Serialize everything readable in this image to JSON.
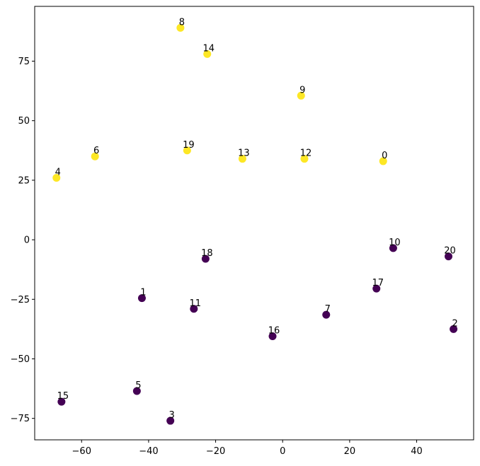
{
  "chart_data": {
    "type": "scatter",
    "title": "",
    "xlabel": "",
    "ylabel": "",
    "xlim": [
      -74,
      57
    ],
    "ylim": [
      -84,
      98
    ],
    "x_ticks": [
      -60,
      -40,
      -20,
      0,
      20,
      40
    ],
    "y_ticks": [
      -75,
      -50,
      -25,
      0,
      25,
      50,
      75
    ],
    "grid": false,
    "colors": {
      "yellow": "#fde725",
      "purple": "#440154"
    },
    "points": [
      {
        "label": "0",
        "x": 30.0,
        "y": 33.0,
        "color": "yellow"
      },
      {
        "label": "1",
        "x": -42.0,
        "y": -24.5,
        "color": "purple"
      },
      {
        "label": "2",
        "x": 51.0,
        "y": -37.5,
        "color": "purple"
      },
      {
        "label": "3",
        "x": -33.5,
        "y": -76.0,
        "color": "purple"
      },
      {
        "label": "4",
        "x": -67.5,
        "y": 26.0,
        "color": "yellow"
      },
      {
        "label": "5",
        "x": -43.5,
        "y": -63.5,
        "color": "purple"
      },
      {
        "label": "6",
        "x": -56.0,
        "y": 35.0,
        "color": "yellow"
      },
      {
        "label": "7",
        "x": 13.0,
        "y": -31.5,
        "color": "purple"
      },
      {
        "label": "8",
        "x": -30.5,
        "y": 89.0,
        "color": "yellow"
      },
      {
        "label": "9",
        "x": 5.5,
        "y": 60.5,
        "color": "yellow"
      },
      {
        "label": "10",
        "x": 33.0,
        "y": -3.5,
        "color": "purple"
      },
      {
        "label": "11",
        "x": -26.5,
        "y": -29.0,
        "color": "purple"
      },
      {
        "label": "12",
        "x": 6.5,
        "y": 34.0,
        "color": "yellow"
      },
      {
        "label": "13",
        "x": -12.0,
        "y": 34.0,
        "color": "yellow"
      },
      {
        "label": "14",
        "x": -22.5,
        "y": 78.0,
        "color": "yellow"
      },
      {
        "label": "15",
        "x": -66.0,
        "y": -68.0,
        "color": "purple"
      },
      {
        "label": "16",
        "x": -3.0,
        "y": -40.5,
        "color": "purple"
      },
      {
        "label": "17",
        "x": 28.0,
        "y": -20.5,
        "color": "purple"
      },
      {
        "label": "18",
        "x": -23.0,
        "y": -8.0,
        "color": "purple"
      },
      {
        "label": "19",
        "x": -28.5,
        "y": 37.5,
        "color": "yellow"
      },
      {
        "label": "20",
        "x": 49.5,
        "y": -7.0,
        "color": "purple"
      }
    ]
  }
}
